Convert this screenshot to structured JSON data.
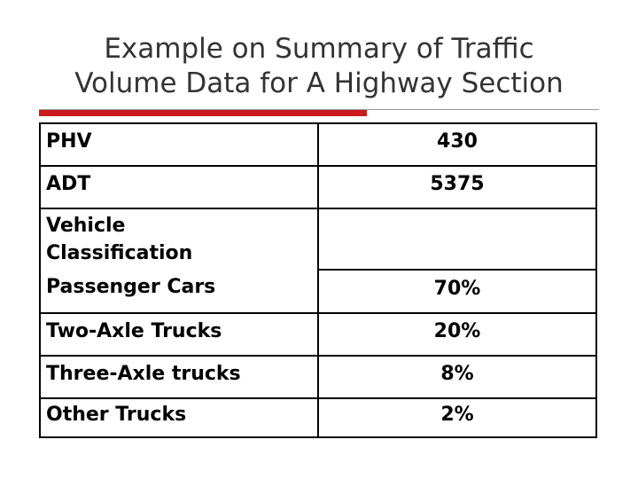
{
  "title": {
    "line1": "Example on Summary of Traffic",
    "line2": "Volume Data for A Highway Section"
  },
  "table": {
    "rows": [
      {
        "label": "PHV",
        "value": "430"
      },
      {
        "label": "ADT",
        "value": "5375"
      },
      {
        "label_line1": "Vehicle",
        "label_line2": "Classification",
        "label_line3": "Passenger Cars",
        "value": "70%"
      },
      {
        "label": "Two-Axle Trucks",
        "value": "20%"
      },
      {
        "label": "Three-Axle trucks",
        "value": "8%"
      },
      {
        "label": "Other Trucks",
        "value": "2%"
      }
    ]
  },
  "colors": {
    "accent_bar": "#cc1a1a",
    "title_text": "#333333",
    "rule": "#9a9a9a"
  }
}
